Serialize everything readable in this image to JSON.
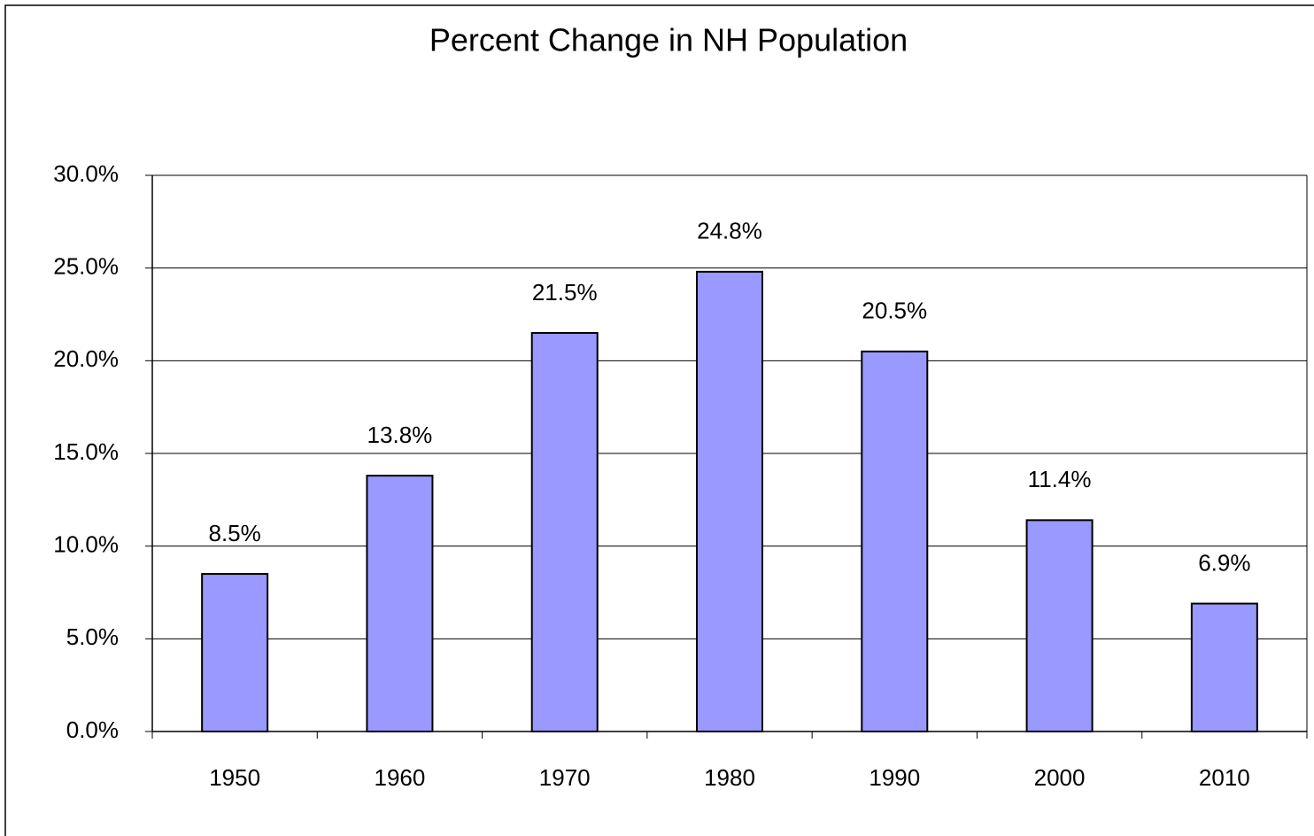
{
  "chart_data": {
    "type": "bar",
    "title": "Percent Change in NH Population",
    "categories": [
      "1950",
      "1960",
      "1970",
      "1980",
      "1990",
      "2000",
      "2010"
    ],
    "values": [
      8.5,
      13.8,
      21.5,
      24.8,
      20.5,
      11.4,
      6.9
    ],
    "value_labels": [
      "8.5%",
      "13.8%",
      "21.5%",
      "24.8%",
      "20.5%",
      "11.4%",
      "6.9%"
    ],
    "color": "#9999ff",
    "ylim": [
      0,
      30
    ],
    "yticks": [
      {
        "value": 0,
        "label": "0.0%"
      },
      {
        "value": 5,
        "label": "5.0%"
      },
      {
        "value": 10,
        "label": "10.0%"
      },
      {
        "value": 15,
        "label": "15.0%"
      },
      {
        "value": 20,
        "label": "20.0%"
      },
      {
        "value": 25,
        "label": "25.0%"
      },
      {
        "value": 30,
        "label": "30.0%"
      }
    ],
    "grid": true
  }
}
